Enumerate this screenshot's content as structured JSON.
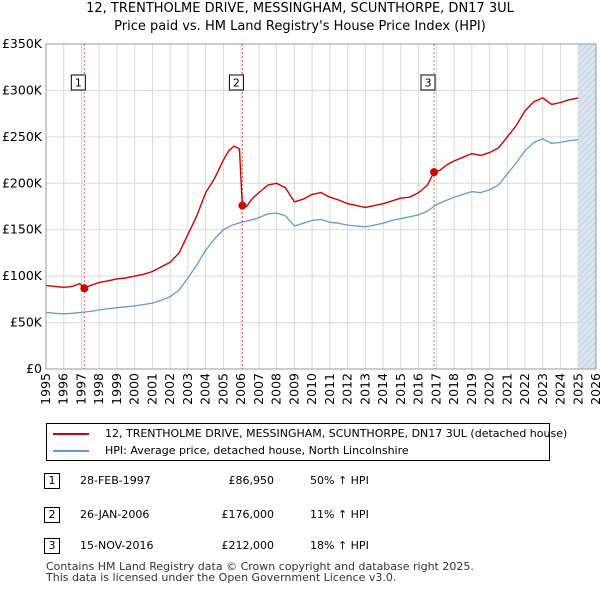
{
  "title_line1": "12, TRENTHOLME DRIVE, MESSINGHAM, SCUNTHORPE, DN17 3UL",
  "title_line2": "Price paid vs. HM Land Registry's House Price Index (HPI)",
  "colors": {
    "property_line": "#cc0000",
    "hpi_line": "#6699cc",
    "grid": "#d9d9d9",
    "shade": "#dce6f2",
    "marker_line": "#e06060"
  },
  "chart_data": {
    "type": "line",
    "x_range": [
      1995,
      2026
    ],
    "y_range": [
      0,
      350000
    ],
    "y_ticks": [
      {
        "value": 0,
        "label": "£0"
      },
      {
        "value": 50000,
        "label": "£50K"
      },
      {
        "value": 100000,
        "label": "£100K"
      },
      {
        "value": 150000,
        "label": "£150K"
      },
      {
        "value": 200000,
        "label": "£200K"
      },
      {
        "value": 250000,
        "label": "£250K"
      },
      {
        "value": 300000,
        "label": "£300K"
      },
      {
        "value": 350000,
        "label": "£350K"
      }
    ],
    "x_ticks": [
      "1995",
      "1996",
      "1997",
      "1998",
      "1999",
      "2000",
      "2001",
      "2002",
      "2003",
      "2004",
      "2005",
      "2006",
      "2007",
      "2008",
      "2009",
      "2010",
      "2011",
      "2012",
      "2013",
      "2014",
      "2015",
      "2016",
      "2017",
      "2018",
      "2019",
      "2020",
      "2021",
      "2022",
      "2023",
      "2024",
      "2025",
      "2026"
    ],
    "future_shade_start": 2025.0,
    "series": [
      {
        "name": "12, TRENTHOLME DRIVE, MESSINGHAM, SCUNTHORPE, DN17 3UL (detached house)",
        "key": "property",
        "points": [
          [
            1995.0,
            90000
          ],
          [
            1995.5,
            89000
          ],
          [
            1996.0,
            88000
          ],
          [
            1996.5,
            89000
          ],
          [
            1996.9,
            92000
          ],
          [
            1997.16,
            86950
          ],
          [
            1997.5,
            90000
          ],
          [
            1998.0,
            93000
          ],
          [
            1998.5,
            95000
          ],
          [
            1999.0,
            97000
          ],
          [
            1999.5,
            98000
          ],
          [
            2000.0,
            100000
          ],
          [
            2000.5,
            102000
          ],
          [
            2001.0,
            105000
          ],
          [
            2001.5,
            110000
          ],
          [
            2002.0,
            115000
          ],
          [
            2002.5,
            125000
          ],
          [
            2003.0,
            145000
          ],
          [
            2003.5,
            165000
          ],
          [
            2004.0,
            190000
          ],
          [
            2004.5,
            205000
          ],
          [
            2005.0,
            225000
          ],
          [
            2005.3,
            235000
          ],
          [
            2005.6,
            240000
          ],
          [
            2005.9,
            237000
          ],
          [
            2006.07,
            176000
          ],
          [
            2006.3,
            175000
          ],
          [
            2006.6,
            183000
          ],
          [
            2007.0,
            190000
          ],
          [
            2007.5,
            198000
          ],
          [
            2008.0,
            200000
          ],
          [
            2008.5,
            195000
          ],
          [
            2009.0,
            180000
          ],
          [
            2009.5,
            183000
          ],
          [
            2010.0,
            188000
          ],
          [
            2010.5,
            190000
          ],
          [
            2011.0,
            185000
          ],
          [
            2011.5,
            182000
          ],
          [
            2012.0,
            178000
          ],
          [
            2012.5,
            176000
          ],
          [
            2013.0,
            174000
          ],
          [
            2013.5,
            176000
          ],
          [
            2014.0,
            178000
          ],
          [
            2014.5,
            181000
          ],
          [
            2015.0,
            184000
          ],
          [
            2015.5,
            185000
          ],
          [
            2016.0,
            190000
          ],
          [
            2016.5,
            198000
          ],
          [
            2016.87,
            212000
          ],
          [
            2017.2,
            214000
          ],
          [
            2017.6,
            220000
          ],
          [
            2018.0,
            224000
          ],
          [
            2018.5,
            228000
          ],
          [
            2019.0,
            232000
          ],
          [
            2019.5,
            230000
          ],
          [
            2020.0,
            233000
          ],
          [
            2020.5,
            238000
          ],
          [
            2021.0,
            250000
          ],
          [
            2021.5,
            262000
          ],
          [
            2022.0,
            278000
          ],
          [
            2022.5,
            288000
          ],
          [
            2023.0,
            292000
          ],
          [
            2023.5,
            285000
          ],
          [
            2024.0,
            287000
          ],
          [
            2024.5,
            290000
          ],
          [
            2025.0,
            292000
          ]
        ]
      },
      {
        "name": "HPI: Average price, detached house, North Lincolnshire",
        "key": "hpi",
        "points": [
          [
            1995.0,
            61000
          ],
          [
            1995.5,
            60000
          ],
          [
            1996.0,
            59500
          ],
          [
            1996.5,
            60000
          ],
          [
            1997.0,
            61000
          ],
          [
            1997.5,
            62000
          ],
          [
            1998.0,
            63500
          ],
          [
            1998.5,
            65000
          ],
          [
            1999.0,
            66000
          ],
          [
            1999.5,
            67000
          ],
          [
            2000.0,
            68000
          ],
          [
            2000.5,
            69500
          ],
          [
            2001.0,
            71000
          ],
          [
            2001.5,
            74000
          ],
          [
            2002.0,
            78000
          ],
          [
            2002.5,
            85000
          ],
          [
            2003.0,
            98000
          ],
          [
            2003.5,
            112000
          ],
          [
            2004.0,
            128000
          ],
          [
            2004.5,
            140000
          ],
          [
            2005.0,
            150000
          ],
          [
            2005.5,
            155000
          ],
          [
            2006.0,
            158000
          ],
          [
            2006.5,
            160000
          ],
          [
            2007.0,
            163000
          ],
          [
            2007.5,
            167000
          ],
          [
            2008.0,
            168000
          ],
          [
            2008.5,
            165000
          ],
          [
            2009.0,
            154000
          ],
          [
            2009.5,
            157000
          ],
          [
            2010.0,
            160000
          ],
          [
            2010.5,
            161000
          ],
          [
            2011.0,
            158000
          ],
          [
            2011.5,
            157000
          ],
          [
            2012.0,
            155000
          ],
          [
            2012.5,
            154000
          ],
          [
            2013.0,
            153000
          ],
          [
            2013.5,
            155000
          ],
          [
            2014.0,
            157000
          ],
          [
            2014.5,
            160000
          ],
          [
            2015.0,
            162000
          ],
          [
            2015.5,
            164000
          ],
          [
            2016.0,
            166000
          ],
          [
            2016.5,
            170000
          ],
          [
            2017.0,
            177000
          ],
          [
            2017.5,
            181000
          ],
          [
            2018.0,
            185000
          ],
          [
            2018.5,
            188000
          ],
          [
            2019.0,
            191000
          ],
          [
            2019.5,
            190000
          ],
          [
            2020.0,
            193000
          ],
          [
            2020.5,
            198000
          ],
          [
            2021.0,
            210000
          ],
          [
            2021.5,
            222000
          ],
          [
            2022.0,
            235000
          ],
          [
            2022.5,
            244000
          ],
          [
            2023.0,
            248000
          ],
          [
            2023.5,
            243000
          ],
          [
            2024.0,
            244000
          ],
          [
            2024.5,
            246000
          ],
          [
            2025.0,
            247000
          ]
        ]
      }
    ],
    "sales": [
      {
        "label": "1",
        "date": "28-FEB-1997",
        "x": 1997.16,
        "price": 86950,
        "price_text": "£86,950",
        "hpi_text": "50% ↑ HPI"
      },
      {
        "label": "2",
        "date": "26-JAN-2006",
        "x": 2006.07,
        "price": 176000,
        "price_text": "£176,000",
        "hpi_text": "11% ↑ HPI"
      },
      {
        "label": "3",
        "date": "15-NOV-2016",
        "x": 2016.87,
        "price": 212000,
        "price_text": "£212,000",
        "hpi_text": "18% ↑ HPI"
      }
    ]
  },
  "legend": {
    "property_label": "12, TRENTHOLME DRIVE, MESSINGHAM, SCUNTHORPE, DN17 3UL (detached house)",
    "hpi_label": "HPI: Average price, detached house, North Lincolnshire"
  },
  "footer_line1": "Contains HM Land Registry data © Crown copyright and database right 2025.",
  "footer_line2": "This data is licensed under the Open Government Licence v3.0."
}
